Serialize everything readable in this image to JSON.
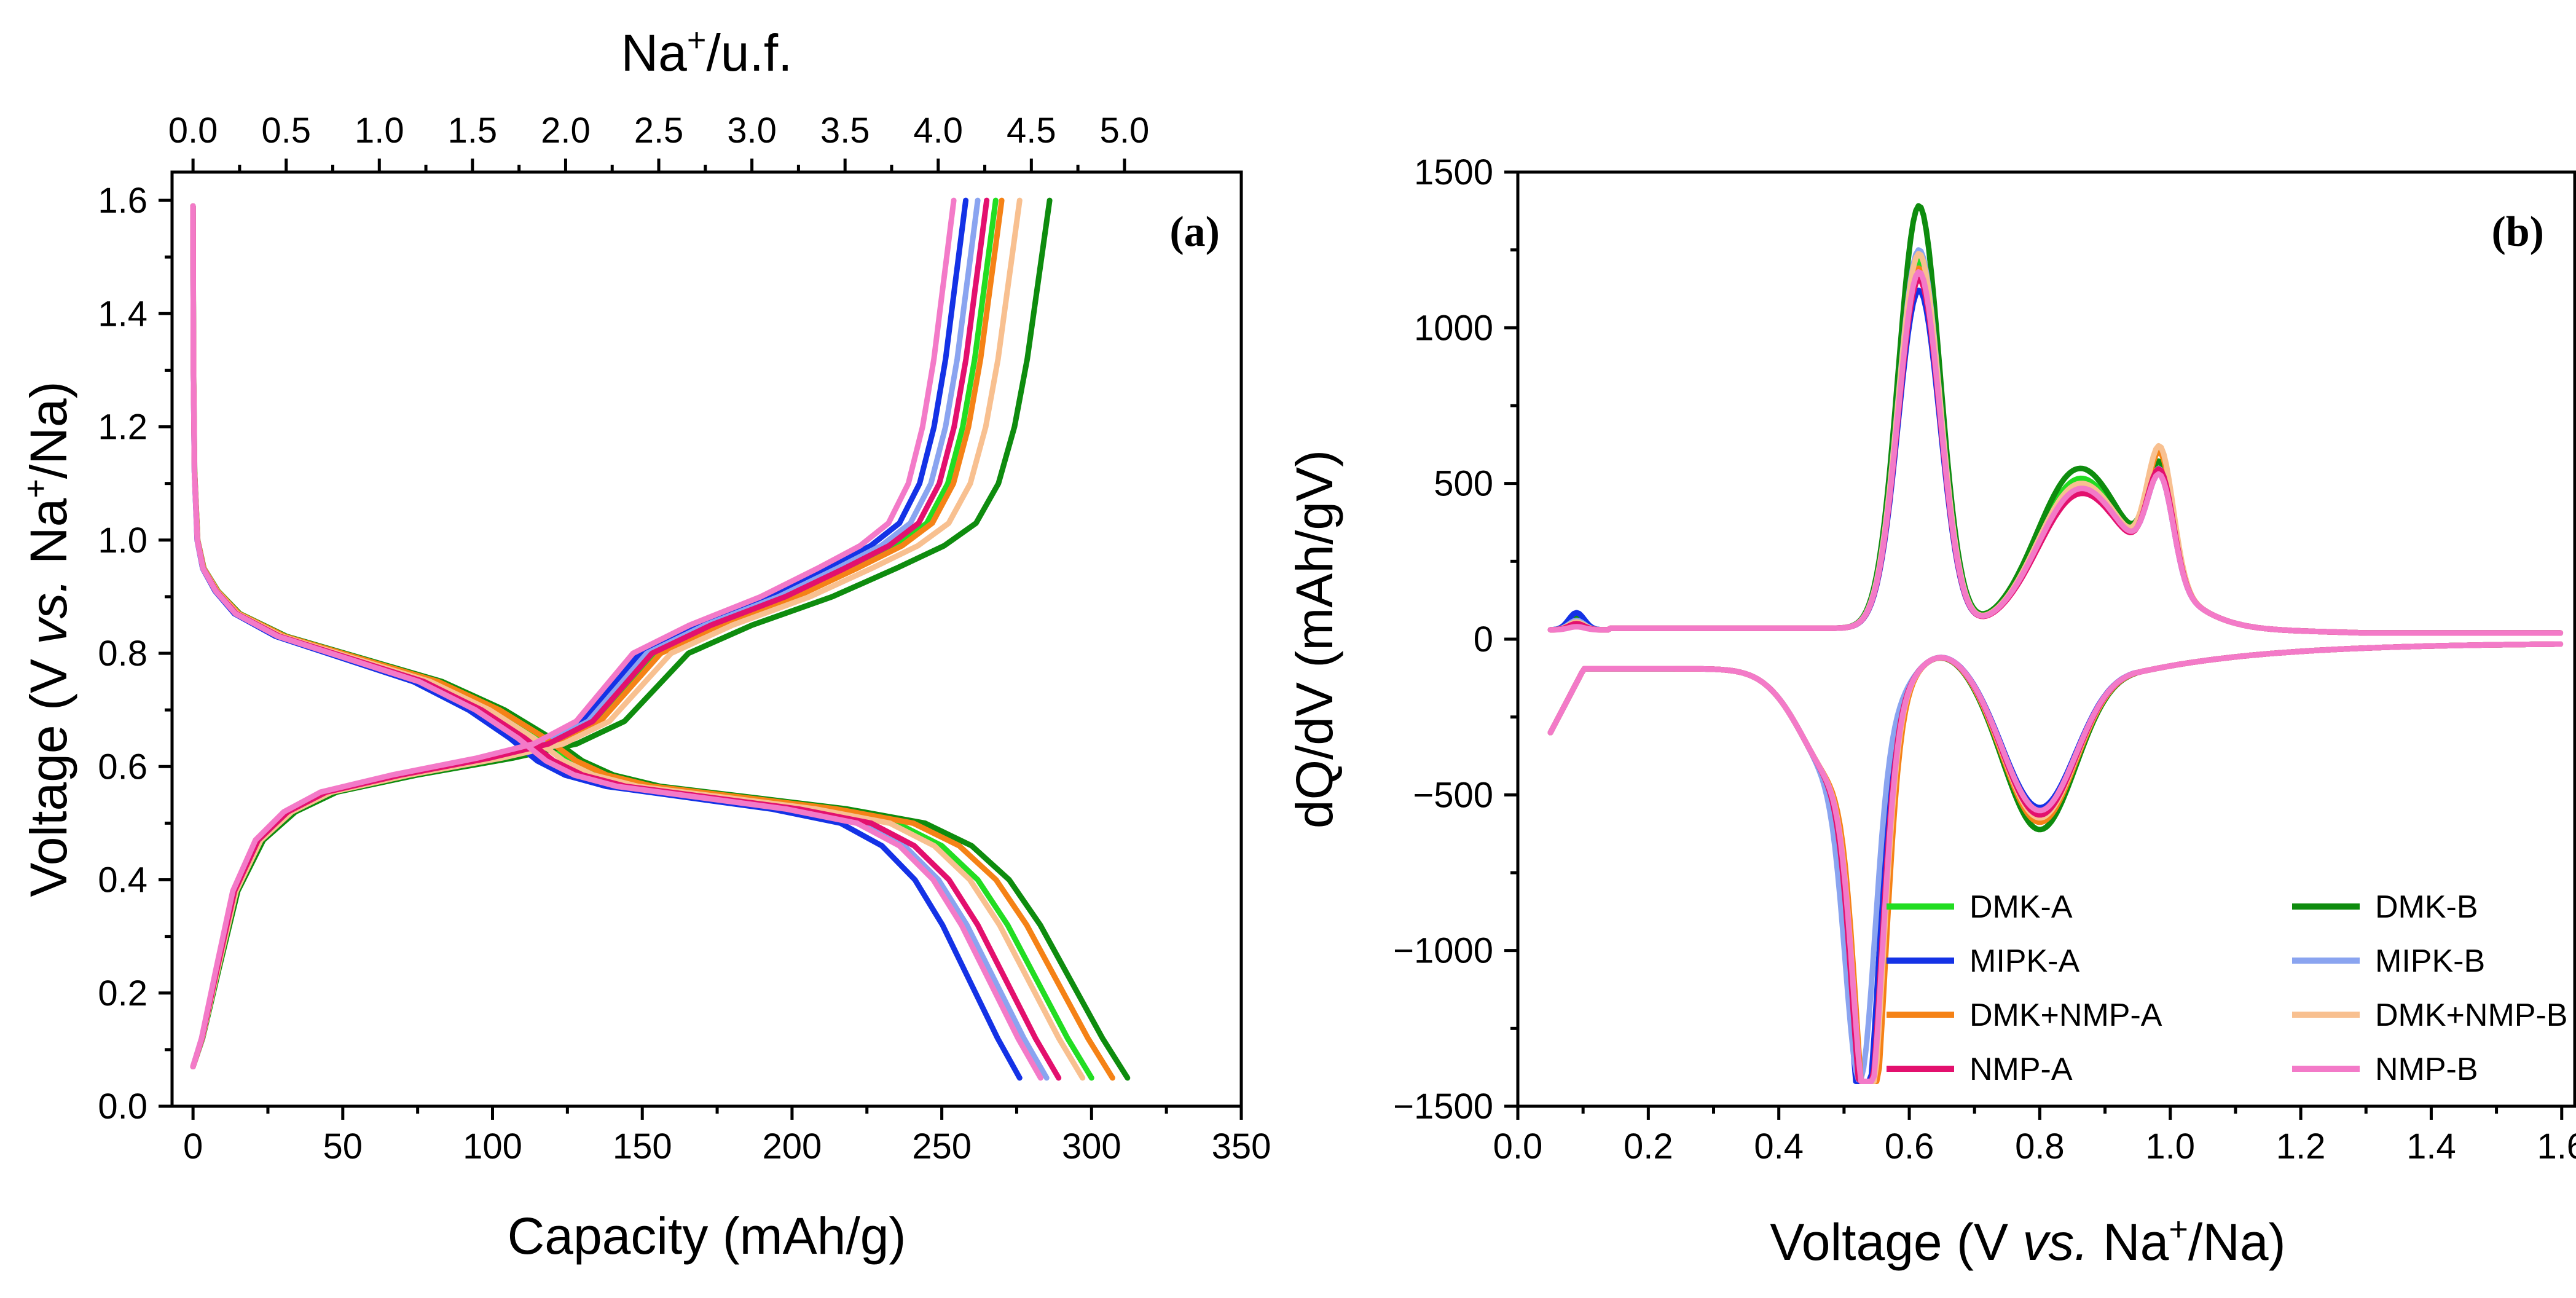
{
  "chart_data": [
    {
      "id": "a",
      "type": "line",
      "panel_tag": "(a)",
      "xlabel": "Capacity (mAh/g)",
      "ylabel_parts": [
        "Voltage (V ",
        "vs.",
        " Na",
        "+",
        "/Na)"
      ],
      "top_xlabel_parts": [
        "Na",
        "+",
        "/u.f."
      ],
      "xlim": [
        -7,
        350
      ],
      "ylim": [
        0,
        1.65
      ],
      "xticks": [
        "0",
        "50",
        "100",
        "150",
        "200",
        "250",
        "300",
        "350"
      ],
      "yticks": [
        "0.0",
        "0.2",
        "0.4",
        "0.6",
        "0.8",
        "1.0",
        "1.2",
        "1.4",
        "1.6"
      ],
      "top_xticks": [
        "0.0",
        "0.5",
        "1.0",
        "1.5",
        "2.0",
        "2.5",
        "3.0",
        "3.5",
        "4.0",
        "4.5",
        "5.0"
      ],
      "top_axis_capacity_per_na": 62.2,
      "grid": false,
      "series": [
        {
          "name": "DMK-A",
          "color": "#22dd22",
          "discharge_end": 300,
          "charge_end": 268
        },
        {
          "name": "DMK-B",
          "color": "#0e8c0e",
          "discharge_end": 312,
          "charge_end": 286
        },
        {
          "name": "MIPK-A",
          "color": "#1432e6",
          "discharge_end": 276,
          "charge_end": 258
        },
        {
          "name": "MIPK-B",
          "color": "#8aa4f0",
          "discharge_end": 285,
          "charge_end": 262
        },
        {
          "name": "DMK+NMP-A",
          "color": "#f58216",
          "discharge_end": 307,
          "charge_end": 270
        },
        {
          "name": "DMK+NMP-B",
          "color": "#f8c090",
          "discharge_end": 297,
          "charge_end": 276
        },
        {
          "name": "NMP-A",
          "color": "#e3106e",
          "discharge_end": 289,
          "charge_end": 265
        },
        {
          "name": "NMP-B",
          "color": "#f37ac8",
          "discharge_end": 283,
          "charge_end": 254
        }
      ]
    },
    {
      "id": "b",
      "type": "line",
      "panel_tag": "(b)",
      "xlabel_parts": [
        "Voltage (V ",
        "vs.",
        " Na",
        "+",
        "/Na)"
      ],
      "ylabel": "dQ/dV (mAh/gV)",
      "xlim": [
        0.0,
        1.62
      ],
      "ylim": [
        -1500,
        1500
      ],
      "xticks": [
        "0.0",
        "0.2",
        "0.4",
        "0.6",
        "0.8",
        "1.0",
        "1.2",
        "1.4",
        "1.6"
      ],
      "yticks": [
        "−1500",
        "−1000",
        "−500",
        "0",
        "500",
        "1000",
        "1500"
      ],
      "grid": false,
      "legend_position": "lower-center",
      "legend": [
        "DMK-A",
        "DMK-B",
        "MIPK-A",
        "MIPK-B",
        "DMK+NMP-A",
        "DMK+NMP-B",
        "NMP-A",
        "NMP-B"
      ],
      "charge_peaks": [
        {
          "voltage": 0.615,
          "dqdv": 1150
        },
        {
          "voltage": 0.85,
          "dqdv": 390
        },
        {
          "voltage": 0.985,
          "dqdv": 520
        }
      ],
      "discharge_peaks": [
        {
          "voltage": 0.535,
          "dqdv": -1300
        },
        {
          "voltage": 0.8,
          "dqdv": -590
        }
      ]
    }
  ]
}
